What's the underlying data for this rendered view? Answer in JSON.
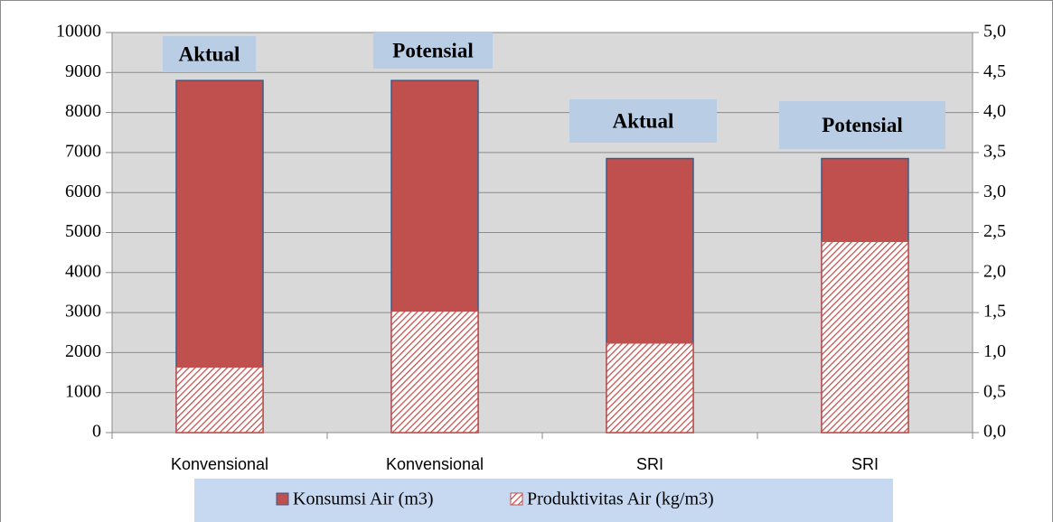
{
  "chart_data": {
    "type": "bar",
    "categories": [
      "Konvensional",
      "Konvensional",
      "SRI",
      "SRI"
    ],
    "series": [
      {
        "name": "Konsumsi Air (m3)",
        "color": "#c0504d",
        "values": [
          8800,
          8800,
          6850,
          6850
        ]
      },
      {
        "name": "Produktivitas Air (kg/m3)",
        "color": "#c0504d",
        "pattern": "hatch",
        "axis": "y2",
        "values": [
          0.82,
          1.52,
          1.12,
          2.39
        ]
      }
    ],
    "annotations": [
      "Aktual",
      "Potensial",
      "Aktual",
      "Potensial"
    ],
    "ylim": [
      0,
      10000
    ],
    "yticks": [
      0,
      1000,
      2000,
      3000,
      4000,
      5000,
      6000,
      7000,
      8000,
      9000,
      10000
    ],
    "y2lim": [
      0,
      5
    ],
    "y2ticks": [
      {
        "value": 0,
        "label": "0,0"
      },
      {
        "value": 0.5,
        "label": "0,5"
      },
      {
        "value": 1,
        "label": "1,0"
      },
      {
        "value": 1.5,
        "label": "1,5"
      },
      {
        "value": 2,
        "label": "2,0"
      },
      {
        "value": 2.5,
        "label": "2,5"
      },
      {
        "value": 3,
        "label": "3,0"
      },
      {
        "value": 3.5,
        "label": "3,5"
      },
      {
        "value": 4,
        "label": "4,0"
      },
      {
        "value": 4.5,
        "label": "4,5"
      },
      {
        "value": 5,
        "label": "5,0"
      }
    ],
    "grid": true,
    "legend": "bottom"
  }
}
